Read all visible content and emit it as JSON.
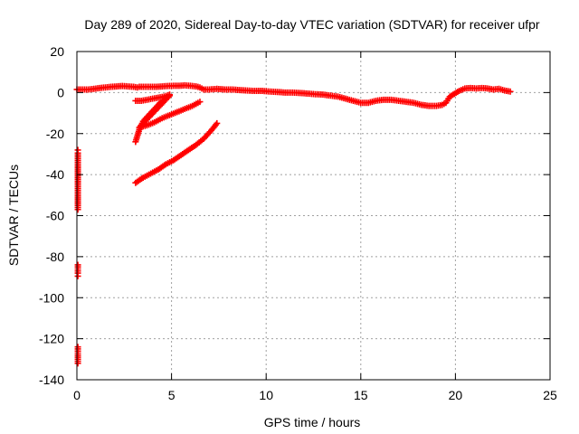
{
  "chart_data": {
    "type": "scatter",
    "title": "Day 289 of 2020, Sidereal Day-to-day VTEC variation (SDTVAR) for receiver ufpr",
    "xlabel": "GPS time / hours",
    "ylabel": "SDTVAR / TECUs",
    "xlim": [
      0,
      25
    ],
    "ylim": [
      -140,
      20
    ],
    "xticks": [
      0,
      5,
      10,
      15,
      20,
      25
    ],
    "yticks": [
      20,
      0,
      -20,
      -40,
      -60,
      -80,
      -100,
      -120,
      -140
    ],
    "grid": true,
    "marker": "+",
    "color": "#ff0000",
    "series": [
      {
        "points": [
          [
            0.0,
            1.5
          ],
          [
            0.3,
            1.5
          ],
          [
            0.6,
            1.5
          ],
          [
            0.9,
            1.8
          ],
          [
            1.2,
            2.2
          ],
          [
            1.5,
            2.5
          ],
          [
            1.8,
            2.8
          ],
          [
            2.1,
            3.0
          ],
          [
            2.4,
            3.2
          ],
          [
            2.7,
            3.0
          ],
          [
            3.0,
            2.8
          ],
          [
            3.2,
            2.5
          ],
          [
            3.3,
            2.8
          ],
          [
            4.2,
            2.8
          ],
          [
            4.5,
            3.0
          ],
          [
            4.8,
            3.2
          ],
          [
            5.1,
            3.3
          ],
          [
            5.4,
            3.3
          ],
          [
            5.7,
            3.5
          ],
          [
            6.0,
            3.3
          ],
          [
            6.3,
            3.0
          ],
          [
            6.5,
            2.5
          ],
          [
            6.7,
            1.5
          ],
          [
            7.0,
            1.5
          ],
          [
            7.4,
            1.8
          ],
          [
            7.8,
            1.5
          ],
          [
            8.2,
            1.5
          ],
          [
            8.6,
            1.2
          ],
          [
            9.0,
            1.0
          ],
          [
            9.4,
            0.8
          ],
          [
            9.8,
            0.8
          ],
          [
            10.2,
            0.5
          ],
          [
            10.6,
            0.3
          ],
          [
            11.0,
            0.0
          ],
          [
            11.4,
            0.0
          ],
          [
            11.8,
            -0.2
          ],
          [
            12.2,
            -0.5
          ],
          [
            12.6,
            -0.8
          ],
          [
            13.0,
            -1.0
          ],
          [
            13.4,
            -1.5
          ],
          [
            13.8,
            -2.0
          ],
          [
            14.2,
            -3.0
          ],
          [
            14.6,
            -4.0
          ],
          [
            15.0,
            -5.0
          ],
          [
            15.4,
            -5.0
          ],
          [
            15.8,
            -4.0
          ],
          [
            16.2,
            -3.5
          ],
          [
            16.6,
            -3.5
          ],
          [
            17.0,
            -4.0
          ],
          [
            17.4,
            -4.5
          ],
          [
            17.8,
            -5.0
          ],
          [
            18.2,
            -6.0
          ],
          [
            18.6,
            -6.5
          ],
          [
            19.0,
            -6.5
          ],
          [
            19.3,
            -6.0
          ],
          [
            19.5,
            -5.0
          ],
          [
            19.7,
            -2.0
          ],
          [
            20.2,
            0.8
          ],
          [
            20.5,
            2.0
          ],
          [
            20.8,
            2.2
          ],
          [
            21.1,
            2.0
          ],
          [
            21.4,
            2.2
          ],
          [
            21.7,
            2.0
          ],
          [
            22.0,
            1.5
          ],
          [
            22.3,
            1.8
          ],
          [
            22.6,
            1.0
          ],
          [
            22.9,
            0.5
          ]
        ]
      },
      {
        "points": [
          [
            3.1,
            -4.0
          ],
          [
            3.4,
            -4.0
          ],
          [
            3.7,
            -3.5
          ],
          [
            4.0,
            -3.0
          ],
          [
            4.3,
            -2.5
          ],
          [
            4.6,
            -2.0
          ],
          [
            4.9,
            -1.0
          ]
        ]
      },
      {
        "points": [
          [
            3.1,
            -24.0
          ],
          [
            3.3,
            -18.0
          ],
          [
            3.5,
            -14.0
          ],
          [
            3.8,
            -11.0
          ],
          [
            4.1,
            -8.0
          ],
          [
            4.4,
            -5.0
          ],
          [
            4.7,
            -3.0
          ],
          [
            4.9,
            -1.5
          ],
          [
            3.3,
            -17.0
          ],
          [
            3.7,
            -16.0
          ],
          [
            4.1,
            -14.5
          ],
          [
            4.5,
            -12.5
          ],
          [
            4.9,
            -11.0
          ],
          [
            5.3,
            -9.5
          ],
          [
            5.7,
            -8.0
          ],
          [
            6.1,
            -6.5
          ],
          [
            6.5,
            -4.5
          ]
        ]
      },
      {
        "points": [
          [
            3.1,
            -44.0
          ],
          [
            3.5,
            -41.5
          ],
          [
            3.9,
            -39.5
          ],
          [
            4.3,
            -37.5
          ],
          [
            4.7,
            -35.0
          ],
          [
            5.1,
            -33.0
          ],
          [
            5.5,
            -30.5
          ],
          [
            5.9,
            -28.0
          ],
          [
            6.3,
            -25.5
          ],
          [
            6.7,
            -22.5
          ],
          [
            7.1,
            -18.5
          ],
          [
            7.4,
            -15.0
          ]
        ]
      },
      {
        "points": [
          [
            0.05,
            -28.0
          ],
          [
            0.05,
            -29.5
          ],
          [
            0.05,
            -55.0
          ],
          [
            0.05,
            -57.0
          ],
          [
            0.05,
            -84.0
          ],
          [
            0.05,
            -86.0
          ],
          [
            0.05,
            -88.0
          ],
          [
            0.05,
            -89.5
          ],
          [
            0.05,
            -124.0
          ],
          [
            0.05,
            -127.0
          ],
          [
            0.05,
            -130.0
          ],
          [
            0.05,
            -132.0
          ]
        ]
      }
    ]
  }
}
